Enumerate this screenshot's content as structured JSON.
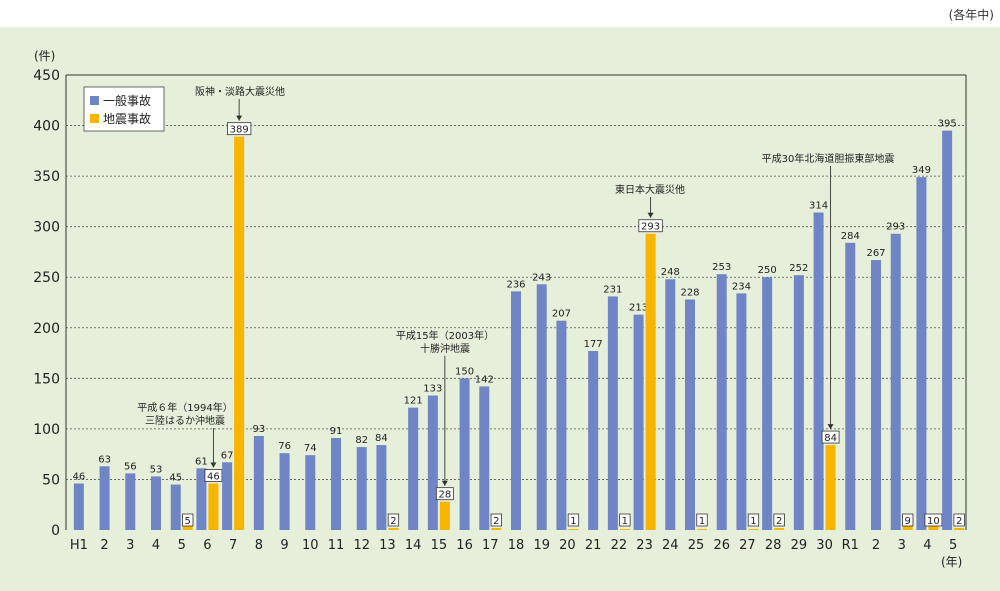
{
  "unit_note": "(各年中)",
  "colors": {
    "general": "#6f85c6",
    "earthquake": "#f7b500",
    "grid": "#555555",
    "panel": "#e6efd9"
  },
  "chart_data": {
    "type": "bar",
    "ylabel": "(件)",
    "xlabel": "(年)",
    "ylim": [
      0,
      450
    ],
    "yticks": [
      0,
      50,
      100,
      150,
      200,
      250,
      300,
      350,
      400,
      450
    ],
    "grid": "horizontal dotted",
    "legend_position": "top-left",
    "categories": [
      "H1",
      "2",
      "3",
      "4",
      "5",
      "6",
      "7",
      "8",
      "9",
      "10",
      "11",
      "12",
      "13",
      "14",
      "15",
      "16",
      "17",
      "18",
      "19",
      "20",
      "21",
      "22",
      "23",
      "24",
      "25",
      "26",
      "27",
      "28",
      "29",
      "30",
      "R1",
      "2",
      "3",
      "4",
      "5"
    ],
    "series": [
      {
        "name": "一般事故",
        "values": [
          46,
          63,
          56,
          53,
          45,
          61,
          67,
          93,
          76,
          74,
          91,
          82,
          84,
          121,
          133,
          150,
          142,
          236,
          243,
          207,
          177,
          231,
          213,
          248,
          228,
          253,
          234,
          250,
          252,
          314,
          284,
          267,
          293,
          349,
          395
        ]
      },
      {
        "name": "地震事故",
        "values": [
          0,
          0,
          0,
          0,
          5,
          46,
          389,
          0,
          0,
          0,
          0,
          0,
          2,
          0,
          28,
          0,
          2,
          0,
          0,
          1,
          0,
          1,
          293,
          0,
          1,
          0,
          1,
          2,
          0,
          84,
          0,
          0,
          9,
          10,
          2
        ]
      }
    ],
    "annotations": [
      {
        "text": [
          "平成６年（1994年）",
          "三陸はるか沖地震"
        ],
        "category_index": 5
      },
      {
        "text": [
          "阪神・淡路大震災他"
        ],
        "category_index": 6
      },
      {
        "text": [
          "平成15年（2003年）",
          "十勝沖地震"
        ],
        "category_index": 14
      },
      {
        "text": [
          "東日本大震災他"
        ],
        "category_index": 22
      },
      {
        "text": [
          "平成30年北海道胆振東部地震"
        ],
        "category_index": 29
      }
    ]
  }
}
